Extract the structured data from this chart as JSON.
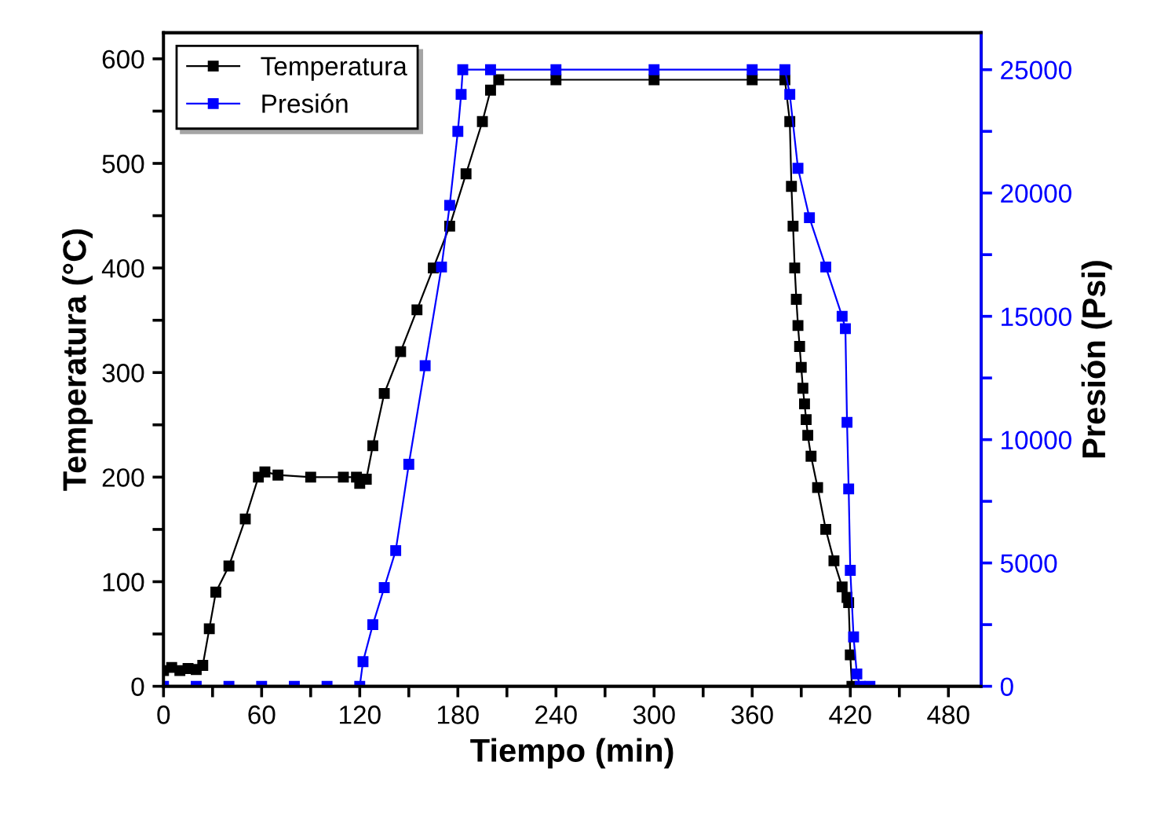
{
  "chart_data": {
    "type": "line",
    "xlabel": "Tiempo (min)",
    "ylabel": "Temperatura (°C)",
    "y2label": "Presión (Psi)",
    "xlim": [
      0,
      500
    ],
    "ylim": [
      0,
      625
    ],
    "y2lim": [
      0,
      26500
    ],
    "xticks": [
      0,
      {
        "value": 30,
        "label": null
      },
      60,
      {
        "value": 90,
        "label": null
      },
      120,
      {
        "value": 150,
        "label": null
      },
      180,
      {
        "value": 210,
        "label": null
      },
      240,
      {
        "value": 270,
        "label": null
      },
      300,
      {
        "value": 330,
        "label": null
      },
      360,
      {
        "value": 390,
        "label": null
      },
      420,
      {
        "value": 450,
        "label": null
      },
      480
    ],
    "yticks": [
      0,
      {
        "value": 50,
        "label": null
      },
      100,
      {
        "value": 150,
        "label": null
      },
      200,
      {
        "value": 250,
        "label": null
      },
      300,
      {
        "value": 350,
        "label": null
      },
      400,
      {
        "value": 450,
        "label": null
      },
      500,
      {
        "value": 550,
        "label": null
      },
      600
    ],
    "y2ticks": [
      0,
      {
        "value": 2500,
        "label": null
      },
      5000,
      {
        "value": 7500,
        "label": null
      },
      10000,
      {
        "value": 12500,
        "label": null
      },
      15000,
      {
        "value": 17500,
        "label": null
      },
      20000,
      {
        "value": 22500,
        "label": null
      },
      25000
    ],
    "legend": "top left",
    "marker": "square",
    "line_style": "solid",
    "grid": false,
    "series": [
      {
        "name": "Temperatura",
        "color": "#000000",
        "x": [
          0,
          5,
          10,
          15,
          20,
          24,
          28,
          32,
          40,
          50,
          58,
          62,
          70,
          90,
          110,
          118,
          120,
          124,
          128,
          135,
          145,
          155,
          165,
          175,
          185,
          195,
          200,
          205,
          240,
          300,
          360,
          380,
          383,
          384,
          385,
          386,
          387,
          388,
          389,
          390,
          391,
          392,
          393,
          394,
          396,
          400,
          405,
          410,
          415,
          418,
          419,
          420,
          421
        ],
        "values": [
          15,
          18,
          15,
          17,
          16,
          20,
          55,
          90,
          115,
          160,
          200,
          205,
          202,
          200,
          200,
          200,
          194,
          198,
          230,
          280,
          320,
          360,
          400,
          440,
          490,
          540,
          570,
          580,
          580,
          580,
          580,
          580,
          540,
          478,
          440,
          400,
          370,
          345,
          325,
          305,
          285,
          270,
          255,
          240,
          220,
          190,
          150,
          120,
          95,
          85,
          80,
          30,
          0
        ]
      },
      {
        "name": "Presión",
        "color": "#0000ff",
        "axis": "y2",
        "x": [
          0,
          20,
          40,
          60,
          80,
          100,
          120,
          122,
          128,
          135,
          142,
          150,
          160,
          170,
          175,
          180,
          182,
          183,
          200,
          240,
          300,
          360,
          380,
          383,
          388,
          395,
          405,
          415,
          417,
          418,
          419,
          420,
          422,
          424,
          426,
          432
        ],
        "values": [
          0,
          0,
          0,
          0,
          0,
          0,
          0,
          1000,
          2500,
          4000,
          5500,
          9000,
          13000,
          17000,
          19500,
          22500,
          24000,
          25000,
          25000,
          25000,
          25000,
          25000,
          25000,
          24000,
          21000,
          19000,
          17000,
          15000,
          14500,
          10700,
          8000,
          4700,
          2000,
          500,
          0,
          0
        ]
      }
    ]
  }
}
